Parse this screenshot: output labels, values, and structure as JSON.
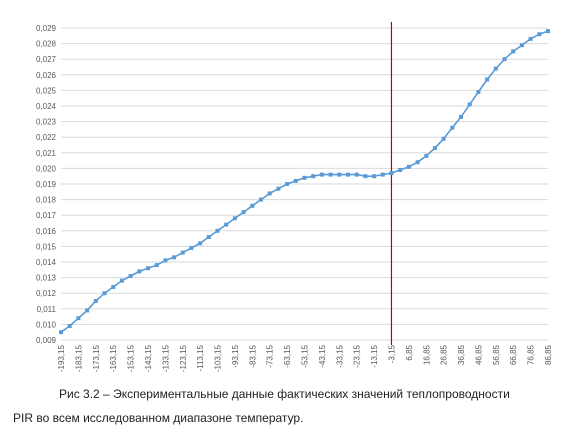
{
  "chart_data": {
    "type": "line",
    "decimal_separator": ",",
    "grid": {
      "horizontal": true,
      "vertical": false
    },
    "ylim": [
      0.009,
      0.029
    ],
    "yticks": [
      "0,009",
      "0,010",
      "0,011",
      "0,012",
      "0,013",
      "0,014",
      "0,015",
      "0,016",
      "0,017",
      "0,018",
      "0,019",
      "0,020",
      "0,021",
      "0,022",
      "0,023",
      "0,024",
      "0,025",
      "0,026",
      "0,027",
      "0,028",
      "0,029"
    ],
    "xticks": [
      "-193,15",
      "-183,15",
      "-173,15",
      "-163,15",
      "-153,15",
      "-143,15",
      "-133,15",
      "-123,15",
      "-113,15",
      "-103,15",
      "-93,15",
      "-83,15",
      "-73,15",
      "-63,15",
      "-53,15",
      "-43,15",
      "-33,15",
      "-23,15",
      "-13,15",
      "-3,15",
      "6,85",
      "16,85",
      "26,85",
      "36,85",
      "46,85",
      "56,85",
      "66,85",
      "76,85",
      "86,85"
    ],
    "series": [
      {
        "color": "#5b9bd5",
        "x": [
          -193.15,
          -188.15,
          -183.15,
          -178.15,
          -173.15,
          -168.15,
          -163.15,
          -158.15,
          -153.15,
          -148.15,
          -143.15,
          -138.15,
          -133.15,
          -128.15,
          -123.15,
          -118.15,
          -113.15,
          -108.15,
          -103.15,
          -98.15,
          -93.15,
          -88.15,
          -83.15,
          -78.15,
          -73.15,
          -68.15,
          -63.15,
          -58.15,
          -53.15,
          -48.15,
          -43.15,
          -38.15,
          -33.15,
          -28.15,
          -23.15,
          -18.15,
          -13.15,
          -8.15,
          -3.15,
          1.85,
          6.85,
          11.85,
          16.85,
          21.85,
          26.85,
          31.85,
          36.85,
          41.85,
          46.85,
          51.85,
          56.85,
          61.85,
          66.85,
          71.85,
          76.85,
          81.85,
          86.85
        ],
        "y": [
          0.0095,
          0.0099,
          0.0104,
          0.0109,
          0.0115,
          0.012,
          0.0124,
          0.0128,
          0.0131,
          0.0134,
          0.0136,
          0.0138,
          0.0141,
          0.0143,
          0.0146,
          0.0149,
          0.0152,
          0.0156,
          0.016,
          0.0164,
          0.0168,
          0.0172,
          0.0176,
          0.018,
          0.0184,
          0.0187,
          0.019,
          0.0192,
          0.0194,
          0.0195,
          0.0196,
          0.0196,
          0.0196,
          0.0196,
          0.0196,
          0.0195,
          0.0195,
          0.0196,
          0.0197,
          0.0199,
          0.0201,
          0.0204,
          0.0208,
          0.0213,
          0.0219,
          0.0226,
          0.0233,
          0.0241,
          0.0249,
          0.0257,
          0.0264,
          0.027,
          0.0275,
          0.0279,
          0.0283,
          0.0286,
          0.0288
        ]
      }
    ],
    "marker_line": {
      "x": -3.15,
      "color": "#c00000"
    }
  },
  "caption": {
    "line1": "Рис 3.2 – Экспериментальные данные фактических значений теплопроводности",
    "line2": "PIR во всем исследованном диапазоне температур."
  }
}
